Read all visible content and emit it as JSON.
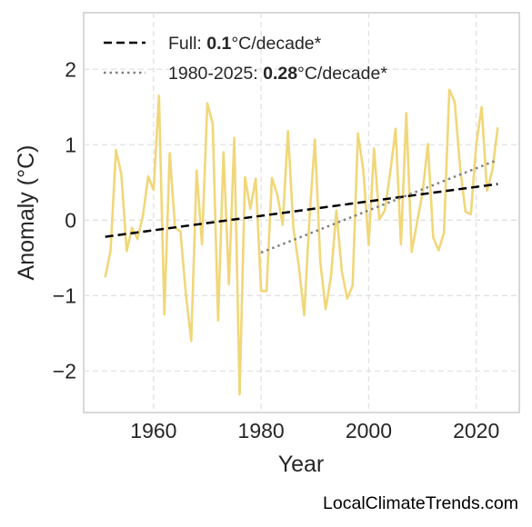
{
  "chart_data": {
    "type": "line",
    "xlabel": "Year",
    "ylabel": "Anomaly (°C)",
    "xlim": [
      1947,
      2028
    ],
    "ylim": [
      -2.55,
      2.75
    ],
    "xticks": [
      1960,
      1980,
      2000,
      2020
    ],
    "yticks": [
      -2,
      -1,
      0,
      1,
      2
    ],
    "ytick_labels": [
      "−2",
      "−1",
      "0",
      "1",
      "2"
    ],
    "grid": true,
    "legend_position": "top-left",
    "series": [
      {
        "name": "",
        "color": "#f1d779",
        "style": "solid",
        "x": [
          1951,
          1952,
          1953,
          1954,
          1955,
          1956,
          1957,
          1958,
          1959,
          1960,
          1961,
          1962,
          1963,
          1964,
          1965,
          1966,
          1967,
          1968,
          1969,
          1970,
          1971,
          1972,
          1973,
          1974,
          1975,
          1976,
          1977,
          1978,
          1979,
          1980,
          1981,
          1982,
          1983,
          1984,
          1985,
          1986,
          1987,
          1988,
          1989,
          1990,
          1991,
          1992,
          1993,
          1994,
          1995,
          1996,
          1997,
          1998,
          1999,
          2000,
          2001,
          2002,
          2003,
          2004,
          2005,
          2006,
          2007,
          2008,
          2009,
          2010,
          2011,
          2012,
          2013,
          2014,
          2015,
          2016,
          2017,
          2018,
          2019,
          2020,
          2021,
          2022,
          2023,
          2024
        ],
        "values": [
          -0.76,
          -0.4,
          0.93,
          0.61,
          -0.41,
          -0.1,
          -0.25,
          0.05,
          0.58,
          0.4,
          1.65,
          -1.25,
          0.89,
          -0.1,
          -0.15,
          -0.98,
          -1.6,
          0.66,
          -0.32,
          1.55,
          1.28,
          -1.33,
          0.9,
          -0.85,
          1.09,
          -2.31,
          0.57,
          0.15,
          0.55,
          -0.94,
          -0.94,
          0.56,
          0.34,
          -0.06,
          1.18,
          -0.1,
          -0.6,
          -1.26,
          0.05,
          1.07,
          -0.55,
          -1.18,
          -0.74,
          0.13,
          -0.68,
          -1.04,
          -0.87,
          1.15,
          0.66,
          -0.33,
          0.95,
          0.01,
          0.13,
          0.63,
          1.21,
          -0.32,
          1.42,
          -0.42,
          -0.03,
          0.36,
          1.01,
          -0.23,
          -0.4,
          -0.17,
          1.73,
          1.57,
          0.69,
          0.11,
          0.08,
          1.01,
          1.5,
          0.39,
          0.66,
          1.23
        ]
      },
      {
        "name": "Full",
        "color": "#000000",
        "style": "dashed",
        "x": [
          1951,
          2024
        ],
        "values": [
          -0.22,
          0.48
        ]
      },
      {
        "name": "1980-2025",
        "color": "#808080",
        "style": "dotted",
        "x": [
          1980,
          2024
        ],
        "values": [
          -0.43,
          0.8
        ]
      }
    ],
    "legend": [
      {
        "prefix": "Full: ",
        "value": "0.1",
        "suffix": "°C/decade*",
        "style": "dashed",
        "color": "#000000"
      },
      {
        "prefix": "1980-2025: ",
        "value": "0.28",
        "suffix": "°C/decade*",
        "style": "dotted",
        "color": "#808080"
      }
    ]
  },
  "source_label": "LocalClimateTrends.com"
}
